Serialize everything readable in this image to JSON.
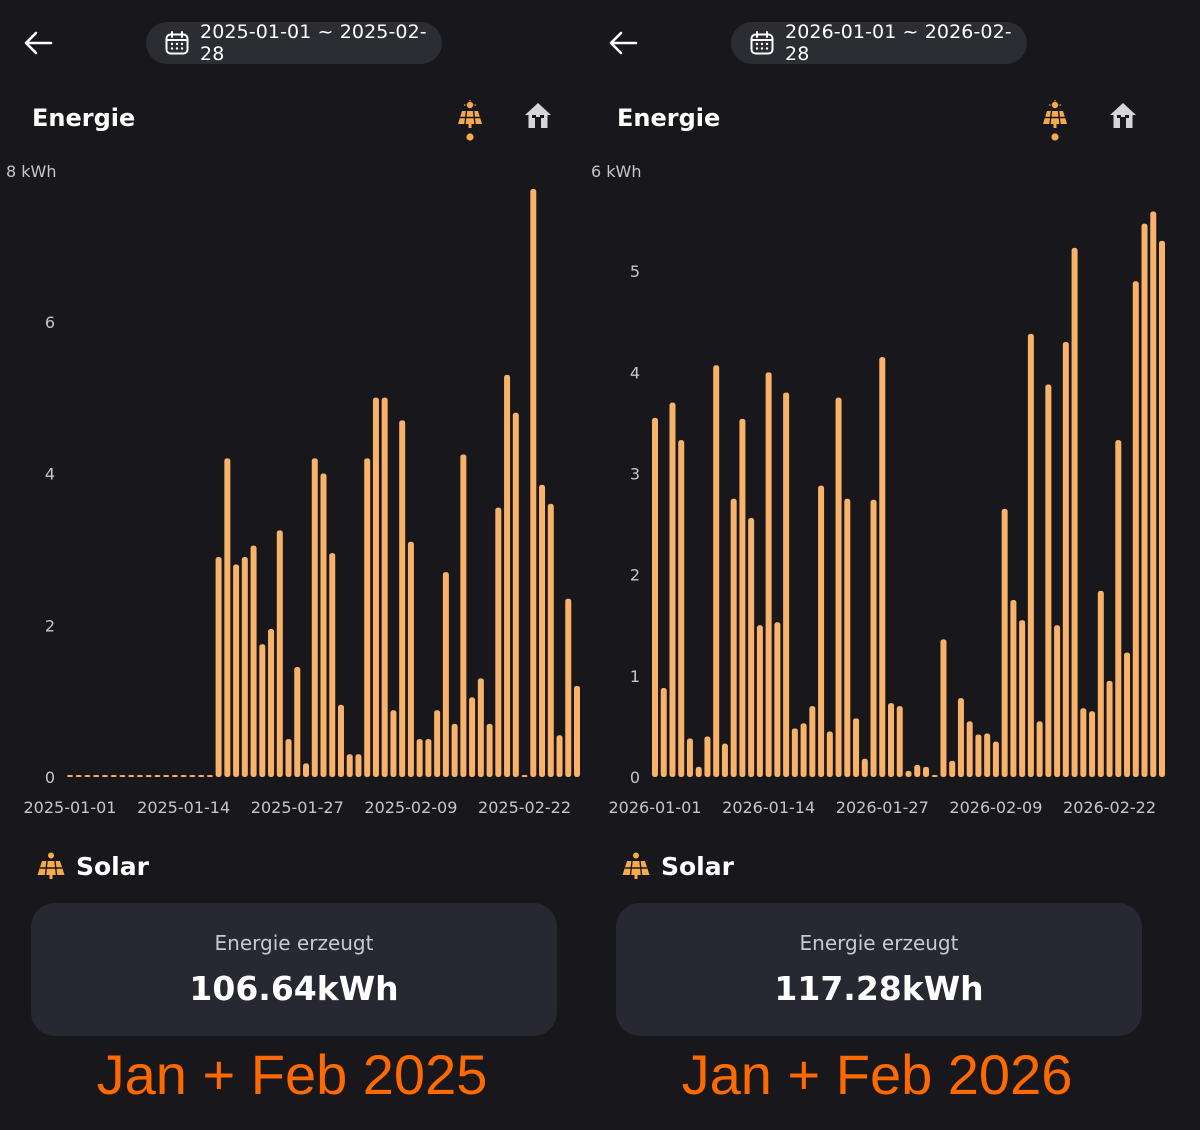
{
  "colors": {
    "bar": "#f8b26a",
    "accent": "#f6a94f",
    "caption": "#ff6a00",
    "background": "#18181c"
  },
  "panels": [
    {
      "date_range": "2025-01-01 ~ 2025-02-28",
      "section_title": "Energie",
      "tabs": {
        "solar": "solar-panel-icon",
        "home": "home-icon"
      },
      "solar_label": "Solar",
      "card": {
        "label": "Energie erzeugt",
        "value": "106.64kWh"
      },
      "caption": "Jan + Feb 2025"
    },
    {
      "date_range": "2026-01-01 ~ 2026-02-28",
      "section_title": "Energie",
      "tabs": {
        "solar": "solar-panel-icon",
        "home": "home-icon"
      },
      "solar_label": "Solar",
      "card": {
        "label": "Energie erzeugt",
        "value": "117.28kWh"
      },
      "caption": "Jan + Feb 2026"
    }
  ],
  "chart_data": [
    {
      "type": "bar",
      "unit_label": "8 kWh",
      "ylim": [
        0,
        8
      ],
      "yticks": [
        0,
        2,
        4,
        6
      ],
      "x_tick_labels": [
        "2025-01-01",
        "2025-01-14",
        "2025-01-27",
        "2025-02-09",
        "2025-02-22"
      ],
      "values": [
        0,
        0,
        0,
        0,
        0,
        0,
        0,
        0,
        0,
        0,
        0,
        0,
        0,
        0,
        0,
        0,
        0,
        2.9,
        4.2,
        2.8,
        2.9,
        3.05,
        1.75,
        1.95,
        3.25,
        0.5,
        1.45,
        0.18,
        4.2,
        4.0,
        2.95,
        0.95,
        0.3,
        0.3,
        4.2,
        5.0,
        5.0,
        0.88,
        4.7,
        3.1,
        0.5,
        0.5,
        0.88,
        2.7,
        0.7,
        4.25,
        1.05,
        1.3,
        0.7,
        3.55,
        5.3,
        4.8,
        0,
        7.75,
        3.85,
        3.6,
        0.55,
        2.35,
        1.2
      ],
      "grid": false,
      "legend": "none"
    },
    {
      "type": "bar",
      "unit_label": "6 kWh",
      "ylim": [
        0,
        6
      ],
      "yticks": [
        0,
        1,
        2,
        3,
        4,
        5
      ],
      "x_tick_labels": [
        "2026-01-01",
        "2026-01-14",
        "2026-01-27",
        "2026-02-09",
        "2026-02-22"
      ],
      "values": [
        3.55,
        0.88,
        3.7,
        3.33,
        0.38,
        0.1,
        0.4,
        4.07,
        0.33,
        2.75,
        3.54,
        2.56,
        1.5,
        4.0,
        1.53,
        3.8,
        0.48,
        0.53,
        0.7,
        2.88,
        0.45,
        3.75,
        2.75,
        0.58,
        0.18,
        2.74,
        4.15,
        0.73,
        0.7,
        0.06,
        0.12,
        0.1,
        0.02,
        1.36,
        0.16,
        0.78,
        0.55,
        0.42,
        0.43,
        0.35,
        2.65,
        1.75,
        1.55,
        4.38,
        0.55,
        3.88,
        1.5,
        4.3,
        5.23,
        0.68,
        0.65,
        1.84,
        0.95,
        3.33,
        1.23,
        4.9,
        5.47,
        5.59,
        5.3
      ],
      "grid": false,
      "legend": "none"
    }
  ]
}
